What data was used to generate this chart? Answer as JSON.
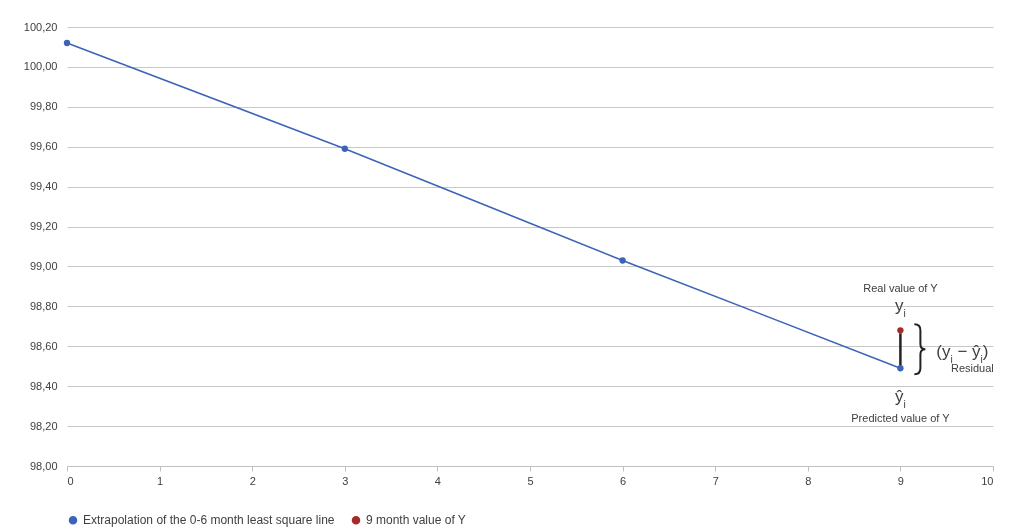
{
  "chart_data": {
    "type": "line",
    "x": [
      0,
      3,
      6,
      9
    ],
    "series": [
      {
        "name": "Extrapolation of the 0-6 month least square line",
        "color": "#3d63b8",
        "values": [
          100.12,
          99.59,
          99.03,
          98.49
        ],
        "type": "line",
        "marker": "circle"
      },
      {
        "name": "9 month value of Y",
        "color": "#a52a2a",
        "x": [
          9
        ],
        "values": [
          98.68
        ],
        "type": "scatter",
        "marker": "circle"
      }
    ],
    "xlim": [
      0,
      10
    ],
    "xticks": [
      0,
      1,
      2,
      3,
      4,
      5,
      6,
      7,
      8,
      9,
      10
    ],
    "ylim": [
      98,
      100.2
    ],
    "yticks": [
      {
        "value": 98,
        "label": "98,00"
      },
      {
        "value": 98.2,
        "label": "98,20"
      },
      {
        "value": 98.4,
        "label": "98,40"
      },
      {
        "value": 98.6,
        "label": "98,60"
      },
      {
        "value": 98.8,
        "label": "98,80"
      },
      {
        "value": 99,
        "label": "99,00"
      },
      {
        "value": 99.2,
        "label": "99,20"
      },
      {
        "value": 99.4,
        "label": "99,40"
      },
      {
        "value": 99.6,
        "label": "99,60"
      },
      {
        "value": 99.8,
        "label": "99,80"
      },
      {
        "value": 100,
        "label": "100,00"
      },
      {
        "value": 100.2,
        "label": "100,20"
      }
    ],
    "grid": "y",
    "legend": "bottom",
    "annotations": [
      "Real value of Y",
      "y$_{i}$",
      "(y$_{i}$ − ŷ$_{i}$)",
      "Residual",
      "ŷ$_{i}$",
      "Predicted value of Y"
    ]
  }
}
